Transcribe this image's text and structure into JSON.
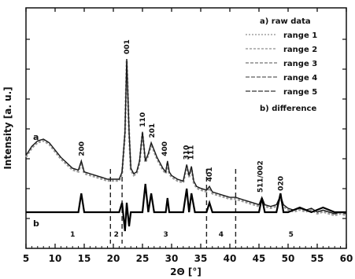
{
  "chart_data": {
    "type": "line",
    "xlabel": "2Θ [°]",
    "ylabel": "Intensity [a. u.]",
    "xlim": [
      5,
      60
    ],
    "ylim": [
      0,
      100
    ],
    "x_ticks": [
      5,
      10,
      15,
      20,
      25,
      30,
      35,
      40,
      45,
      50,
      55,
      60
    ],
    "y_tick_labels_shown": false,
    "grid": false,
    "legend_position": "top-right",
    "legend": {
      "header_a": "a) raw data",
      "entries": [
        {
          "label": "range 1",
          "color": "#a0a0a0",
          "dash": "2,2"
        },
        {
          "label": "range 2",
          "color": "#a0a0a0",
          "dash": "3,2"
        },
        {
          "label": "range 3",
          "color": "#8c8c8c",
          "dash": "4,2"
        },
        {
          "label": "range 4",
          "color": "#787878",
          "dash": "5,2"
        },
        {
          "label": "range 5",
          "color": "#555555",
          "dash": "6,2"
        }
      ],
      "header_b": "b) difference"
    },
    "series": [
      {
        "tag": "a",
        "x": [
          5,
          6,
          7,
          8,
          9,
          10,
          11,
          12,
          13,
          14,
          14.5,
          15,
          16,
          17,
          18,
          19,
          20,
          21,
          21.5,
          22.0,
          22.3,
          22.7,
          23,
          23.5,
          24,
          24.5,
          25,
          25.5,
          26,
          26.5,
          27,
          27.5,
          28,
          28.5,
          29,
          29.3,
          29.6,
          30,
          31,
          32,
          32.6,
          33,
          33.4,
          33.8,
          34.3,
          35,
          36,
          36.5,
          37,
          38,
          39,
          40,
          41,
          42,
          43,
          44,
          45,
          45.5,
          46,
          47,
          48,
          48.7,
          49.2,
          50,
          51,
          52,
          53,
          54,
          55,
          56,
          57,
          58,
          59,
          60
        ],
        "y": [
          47,
          52,
          55,
          56,
          54,
          50,
          46,
          43,
          40,
          39,
          44,
          38,
          37,
          36,
          35,
          34,
          34,
          34,
          38,
          60,
          100,
          60,
          40,
          37,
          38,
          44,
          60,
          44,
          48,
          54,
          50,
          46,
          43,
          40,
          38,
          44,
          38,
          36,
          34,
          33,
          42,
          36,
          41,
          33,
          30,
          29,
          28,
          30,
          27,
          26,
          25,
          24,
          24,
          23,
          22,
          21,
          20,
          24,
          20,
          19,
          20,
          25,
          20,
          18,
          17,
          18,
          17,
          18,
          16,
          17,
          16,
          15,
          16,
          15
        ]
      },
      {
        "tag": "b",
        "x": [
          5,
          8,
          10,
          12,
          14,
          14.5,
          15,
          17,
          19,
          20,
          21,
          21.5,
          22.0,
          22.3,
          22.7,
          23,
          24,
          25,
          25.5,
          26,
          26.5,
          27,
          28,
          29,
          29.3,
          29.6,
          30,
          32,
          32.6,
          33,
          33.4,
          34,
          36,
          36.5,
          37,
          40,
          42,
          45,
          45.5,
          46,
          48,
          48.7,
          49.2,
          50,
          52,
          54,
          56,
          58,
          60
        ],
        "y": [
          10,
          10,
          10,
          10,
          10,
          14,
          10,
          10,
          10,
          10,
          10,
          12,
          6,
          12,
          7,
          10,
          10,
          10,
          16,
          10,
          14,
          10,
          10,
          10,
          13,
          10,
          10,
          10,
          15,
          10,
          14,
          10,
          10,
          12,
          10,
          10,
          10,
          10,
          13,
          10,
          10,
          14,
          10,
          10,
          11,
          10,
          11,
          10,
          10
        ]
      }
    ],
    "peak_labels": [
      {
        "x": 14.5,
        "label": "200"
      },
      {
        "x": 22.3,
        "label": "001"
      },
      {
        "x": 25.0,
        "label": "110"
      },
      {
        "x": 26.6,
        "label": "201"
      },
      {
        "x": 28.8,
        "label": "400"
      },
      {
        "x": 32.5,
        "label": "310"
      },
      {
        "x": 33.3,
        "label": "111"
      },
      {
        "x": 36.5,
        "label": "401"
      },
      {
        "x": 45.2,
        "label": "511/002"
      },
      {
        "x": 48.7,
        "label": "020"
      }
    ],
    "range_boundaries": [
      19.5,
      21.5,
      36,
      41
    ],
    "range_labels": [
      {
        "x": 13,
        "label": "1"
      },
      {
        "x": 20.5,
        "label": "2"
      },
      {
        "x": 29,
        "label": "3"
      },
      {
        "x": 38.5,
        "label": "4"
      },
      {
        "x": 50.5,
        "label": "5"
      }
    ]
  }
}
